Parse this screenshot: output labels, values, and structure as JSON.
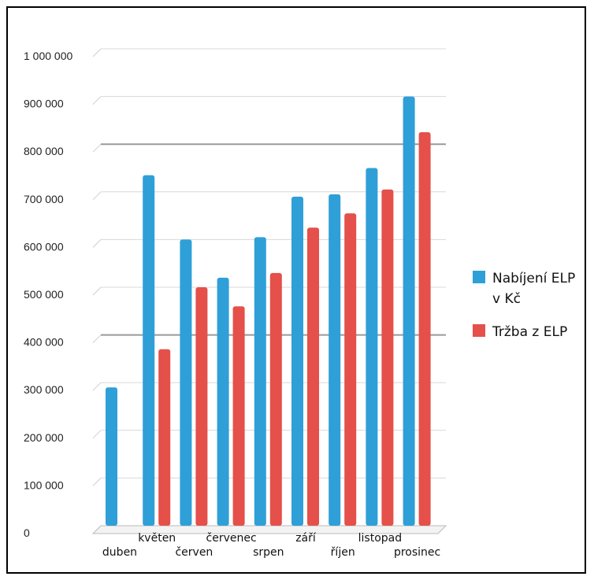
{
  "chart_data": {
    "type": "bar",
    "categories": [
      "duben",
      "květen",
      "červen",
      "červenec",
      "srpen",
      "září",
      "říjen",
      "listopad",
      "prosinec"
    ],
    "series": [
      {
        "name": "Nabíjení ELP v Kč",
        "color": "#2f9fd8",
        "values": [
          290000,
          735000,
          600000,
          520000,
          605000,
          690000,
          695000,
          750000,
          900000
        ]
      },
      {
        "name": "Tržba z ELP",
        "color": "#e5504a",
        "values": [
          null,
          370000,
          500000,
          460000,
          530000,
          625000,
          655000,
          705000,
          825000
        ]
      }
    ],
    "y_ticks": [
      "0",
      "100 000",
      "200 000",
      "300 000",
      "400 000",
      "500 000",
      "600 000",
      "700 000",
      "800 000",
      "900 000",
      "1 000 000"
    ],
    "ylim": [
      0,
      1000000
    ],
    "legend_position": "right",
    "legend_lines": [
      [
        "Nabíjení  ELP",
        "v Kč"
      ],
      [
        "Tržba z ELP"
      ]
    ],
    "grid": true
  }
}
